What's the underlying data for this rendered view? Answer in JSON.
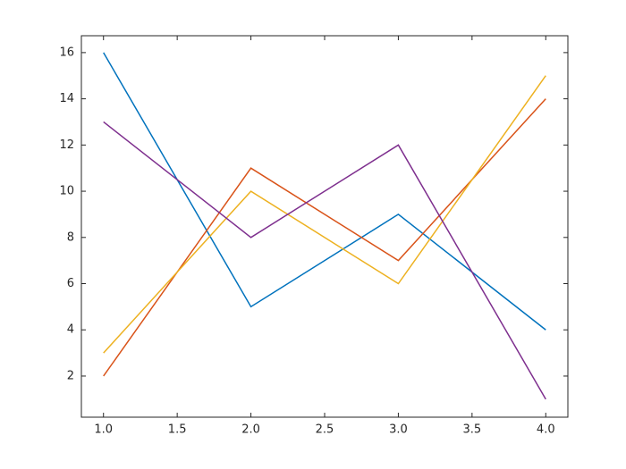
{
  "chart_data": {
    "type": "line",
    "x": [
      1,
      2,
      3,
      4
    ],
    "series": [
      {
        "color": "#0072BD",
        "values": [
          16,
          5,
          9,
          4
        ]
      },
      {
        "color": "#D95319",
        "values": [
          2,
          11,
          7,
          14
        ]
      },
      {
        "color": "#EDB120",
        "values": [
          3,
          10,
          6,
          15
        ]
      },
      {
        "color": "#7E2F8E",
        "values": [
          13,
          8,
          12,
          1
        ]
      }
    ],
    "xlim": [
      0.85,
      4.15
    ],
    "xticks": [
      {
        "value": 1,
        "label": "1.0"
      },
      {
        "value": 1.5,
        "label": "1.5"
      },
      {
        "value": 2,
        "label": "2.0"
      },
      {
        "value": 2.5,
        "label": "2.5"
      },
      {
        "value": 3,
        "label": "3.0"
      },
      {
        "value": 3.5,
        "label": "3.5"
      },
      {
        "value": 4,
        "label": "4.0"
      }
    ],
    "ylim": [
      0.22,
      16.73
    ],
    "yticks": [
      2,
      4,
      6,
      8,
      10,
      12,
      14,
      16
    ],
    "grid": false
  }
}
